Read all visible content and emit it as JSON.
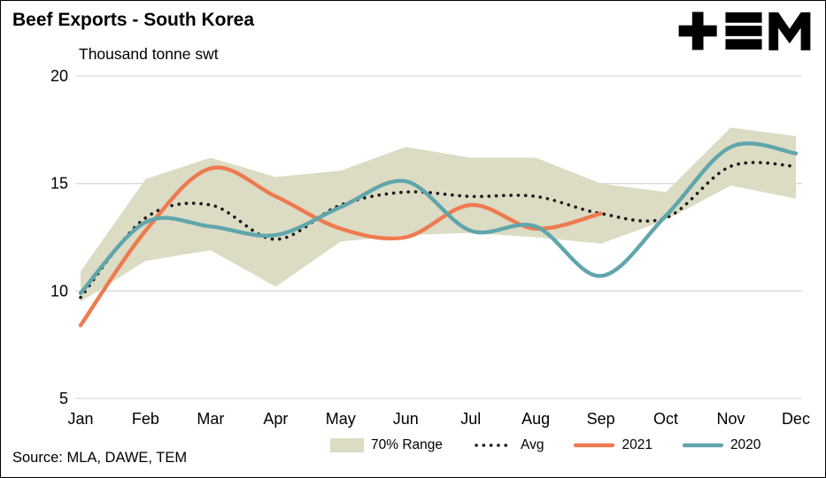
{
  "header": {
    "title": "Beef Exports - South Korea",
    "unit_label": "Thousand tonne swt",
    "logo_name": "TEM"
  },
  "source_note": "Source: MLA, DAWE, TEM",
  "chart_data": {
    "type": "line",
    "title": "Beef Exports - South Korea",
    "ylabel": "Thousand tonne swt",
    "ylim": [
      5,
      20
    ],
    "yticks": [
      5,
      10,
      15,
      20
    ],
    "grid_color": "#d9d9d9",
    "legend_position": "bottom",
    "categories": [
      "Jan",
      "Feb",
      "Mar",
      "Apr",
      "May",
      "Jun",
      "Jul",
      "Aug",
      "Sep",
      "Oct",
      "Nov",
      "Dec"
    ],
    "band": {
      "name": "70% Range",
      "color": "#dcdbc3",
      "upper": [
        10.9,
        15.2,
        16.2,
        15.3,
        15.6,
        16.7,
        16.2,
        16.2,
        15.0,
        14.6,
        17.6,
        17.2
      ],
      "lower": [
        9.5,
        11.4,
        11.9,
        10.2,
        12.3,
        12.6,
        12.7,
        12.5,
        12.2,
        13.3,
        14.9,
        14.3
      ]
    },
    "series": [
      {
        "name": "Avg",
        "style": "dotted",
        "color": "#1a1a1a",
        "values": [
          9.7,
          13.4,
          14.0,
          12.4,
          14.0,
          14.6,
          14.4,
          14.4,
          13.6,
          13.4,
          15.8,
          15.8
        ]
      },
      {
        "name": "2021",
        "style": "solid",
        "color": "#ee7a50",
        "values": [
          8.4,
          12.8,
          15.7,
          14.4,
          12.9,
          12.5,
          14.0,
          12.9,
          13.6,
          null,
          null,
          null
        ]
      },
      {
        "name": "2020",
        "style": "solid",
        "color": "#5fa6ac",
        "values": [
          9.9,
          13.2,
          13.0,
          12.6,
          13.9,
          15.1,
          12.8,
          13.0,
          10.7,
          13.5,
          16.7,
          16.4
        ]
      }
    ],
    "legend": [
      {
        "label": "70% Range"
      },
      {
        "label": "Avg"
      },
      {
        "label": "2021"
      },
      {
        "label": "2020"
      }
    ]
  }
}
